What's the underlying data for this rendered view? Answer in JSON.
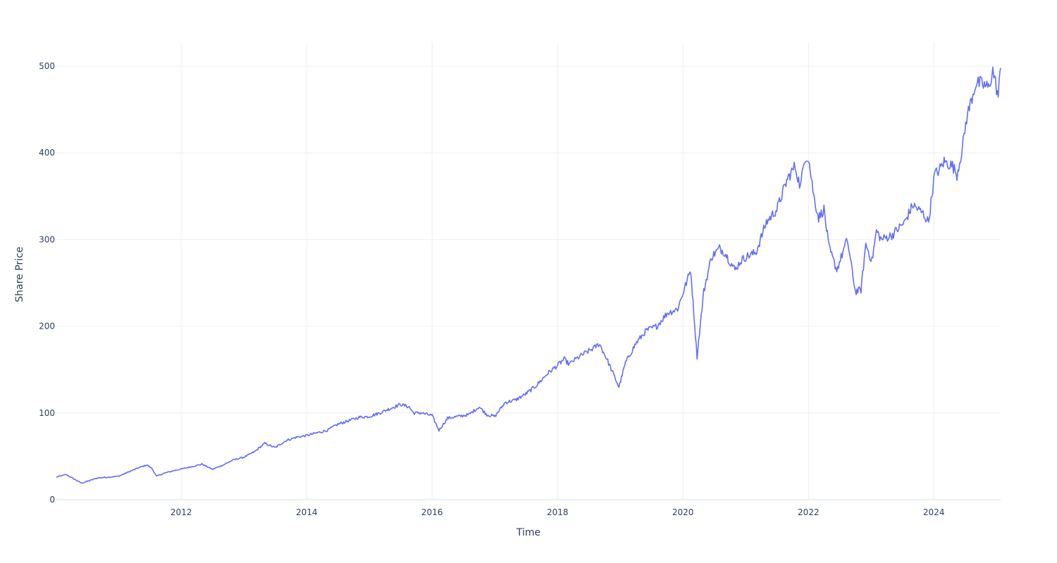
{
  "chart_data": {
    "type": "line",
    "title": "",
    "xlabel": "Time",
    "ylabel": "Share Price",
    "xlim": [
      "2010-01-04",
      "2025-01-24"
    ],
    "ylim": [
      -15,
      528
    ],
    "x_ticks": [
      {
        "date": "2012-01-01",
        "label": "2012"
      },
      {
        "date": "2014-01-01",
        "label": "2014"
      },
      {
        "date": "2016-01-01",
        "label": "2016"
      },
      {
        "date": "2018-01-01",
        "label": "2018"
      },
      {
        "date": "2020-01-01",
        "label": "2020"
      },
      {
        "date": "2022-01-01",
        "label": "2022"
      },
      {
        "date": "2024-01-01",
        "label": "2024"
      }
    ],
    "y_ticks": [
      0,
      100,
      200,
      300,
      400,
      500
    ],
    "grid": true,
    "line_color": "#636efa",
    "series": [
      {
        "x": [
          "2010-01-04",
          "2010-03-01",
          "2010-04-15",
          "2010-06-01",
          "2010-07-01",
          "2010-09-01",
          "2010-11-01",
          "2011-01-01",
          "2011-03-01",
          "2011-05-01",
          "2011-06-15",
          "2011-07-15",
          "2011-08-10",
          "2011-10-01",
          "2011-12-01",
          "2012-03-01",
          "2012-05-01",
          "2012-07-01",
          "2012-09-01",
          "2012-11-01",
          "2013-01-01",
          "2013-03-01",
          "2013-05-01",
          "2013-07-01",
          "2013-09-01",
          "2013-11-01",
          "2014-01-01",
          "2014-03-01",
          "2014-05-01",
          "2014-07-01",
          "2014-09-01",
          "2014-11-01",
          "2015-01-01",
          "2015-03-01",
          "2015-05-01",
          "2015-07-01",
          "2015-08-20",
          "2015-09-15",
          "2015-11-01",
          "2016-01-01",
          "2016-02-10",
          "2016-04-01",
          "2016-06-01",
          "2016-08-01",
          "2016-10-01",
          "2016-11-15",
          "2017-01-01",
          "2017-03-01",
          "2017-05-01",
          "2017-07-01",
          "2017-09-01",
          "2017-11-01",
          "2018-01-01",
          "2018-02-08",
          "2018-03-10",
          "2018-04-01",
          "2018-06-01",
          "2018-08-01",
          "2018-09-01",
          "2018-10-15",
          "2018-12-24",
          "2019-02-01",
          "2019-04-01",
          "2019-06-01",
          "2019-08-01",
          "2019-10-01",
          "2019-12-01",
          "2020-02-15",
          "2020-03-23",
          "2020-05-01",
          "2020-06-15",
          "2020-08-01",
          "2020-09-01",
          "2020-10-30",
          "2020-12-01",
          "2021-01-01",
          "2021-03-01",
          "2021-05-01",
          "2021-07-01",
          "2021-09-01",
          "2021-10-15",
          "2021-11-15",
          "2021-12-10",
          "2022-01-01",
          "2022-02-01",
          "2022-03-01",
          "2022-04-01",
          "2022-05-01",
          "2022-06-15",
          "2022-08-15",
          "2022-10-01",
          "2022-11-03",
          "2022-12-01",
          "2023-01-05",
          "2023-02-01",
          "2023-03-01",
          "2023-05-01",
          "2023-07-15",
          "2023-09-01",
          "2023-10-30",
          "2023-12-01",
          "2024-01-05",
          "2024-02-01",
          "2024-03-01",
          "2024-04-19",
          "2024-05-15",
          "2024-06-15",
          "2024-07-10",
          "2024-08-05",
          "2024-09-01",
          "2024-10-01",
          "2024-11-15",
          "2024-12-10",
          "2025-01-10",
          "2025-01-24"
        ],
        "y": [
          26,
          29,
          24,
          19,
          21,
          25,
          26,
          27,
          32,
          37,
          40,
          36,
          27,
          31,
          34,
          38,
          41,
          35,
          40,
          46,
          49,
          55,
          65,
          60,
          68,
          72,
          74,
          77,
          80,
          87,
          91,
          95,
          96,
          100,
          105,
          110,
          107,
          100,
          100,
          97,
          80,
          94,
          96,
          98,
          107,
          98,
          96,
          112,
          115,
          122,
          132,
          145,
          155,
          162,
          156,
          160,
          168,
          175,
          180,
          162,
          130,
          158,
          180,
          195,
          200,
          215,
          220,
          265,
          165,
          240,
          280,
          290,
          285,
          265,
          275,
          280,
          285,
          320,
          335,
          370,
          385,
          360,
          395,
          395,
          350,
          325,
          335,
          290,
          265,
          300,
          240,
          242,
          295,
          275,
          310,
          300,
          305,
          320,
          340,
          330,
          320,
          375,
          380,
          390,
          385,
          375,
          405,
          440,
          460,
          480,
          480,
          475,
          495,
          465,
          498
        ]
      }
    ]
  }
}
